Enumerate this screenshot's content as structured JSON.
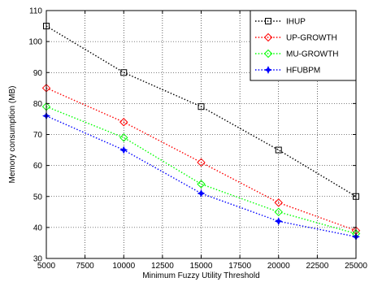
{
  "chart_data": {
    "type": "line",
    "title": "",
    "xlabel": "Minimum Fuzzy Utility Threshold",
    "ylabel": "Memory consumption (MB)",
    "x": [
      5000,
      10000,
      15000,
      20000,
      25000
    ],
    "xlim": [
      5000,
      25000
    ],
    "ylim": [
      30,
      110
    ],
    "xticks": [
      5000,
      7500,
      10000,
      12500,
      15000,
      17500,
      20000,
      22500,
      25000
    ],
    "yticks": [
      30,
      40,
      50,
      60,
      70,
      80,
      90,
      100,
      110
    ],
    "grid": true,
    "legend_position": "top-right",
    "series": [
      {
        "name": "IHUP",
        "values": [
          105,
          90,
          79,
          65,
          50
        ],
        "color": "#000000",
        "marker": "square"
      },
      {
        "name": "UP-GROWTH",
        "values": [
          85,
          74,
          61,
          48,
          39
        ],
        "color": "#ff0000",
        "marker": "diamond"
      },
      {
        "name": "MU-GROWTH",
        "values": [
          79,
          69,
          54,
          45,
          38
        ],
        "color": "#00ff00",
        "marker": "diamond"
      },
      {
        "name": "HFUBPM",
        "values": [
          76,
          65,
          51,
          42,
          37
        ],
        "color": "#0000ff",
        "marker": "star"
      }
    ]
  }
}
